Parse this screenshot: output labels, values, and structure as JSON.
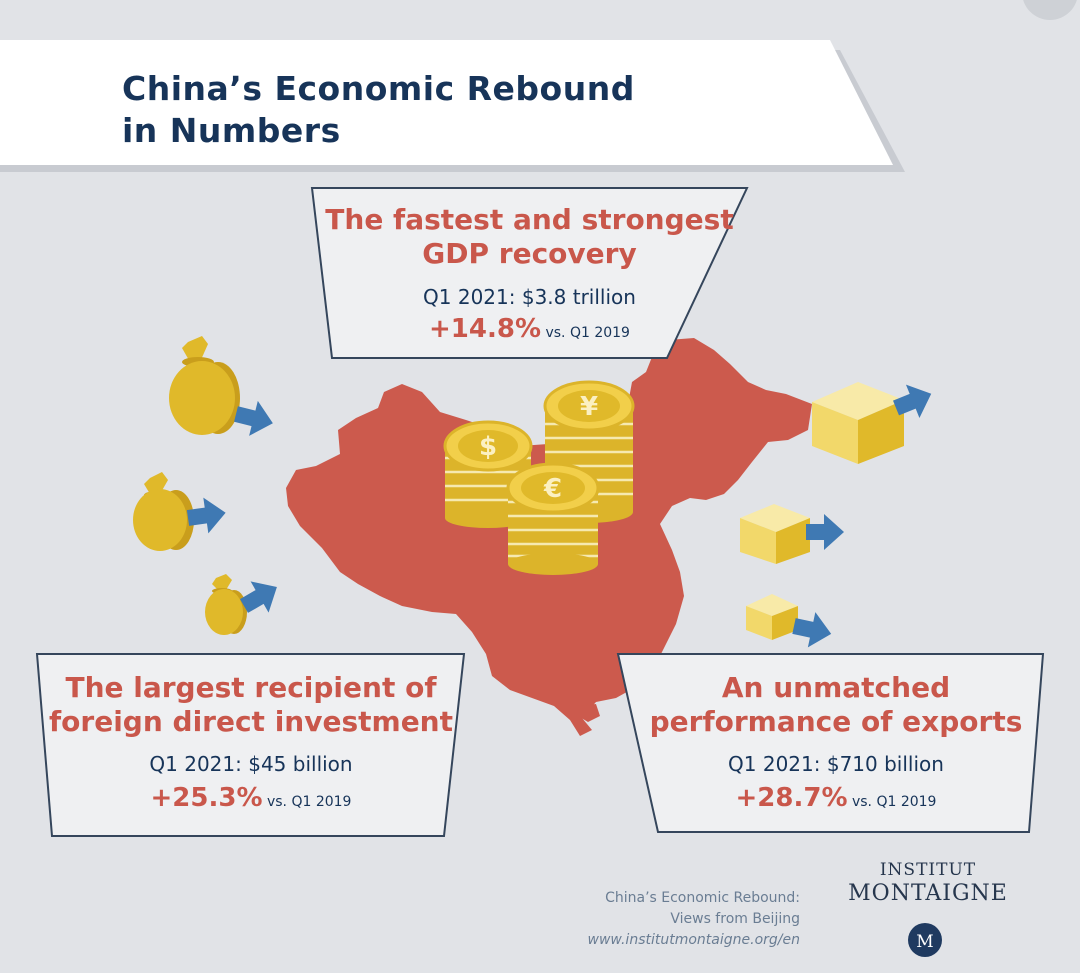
{
  "title": {
    "line1": "China’s Economic Rebound",
    "line2": "in Numbers"
  },
  "gdp": {
    "heading_line1": "The fastest and strongest",
    "heading_line2": "GDP recovery",
    "value": "Q1 2021: $3.8 trillion",
    "change": "+14.8%",
    "comparison": "vs. Q1 2019"
  },
  "fdi": {
    "heading_line1": "The largest recipient of",
    "heading_line2": "foreign direct investment",
    "value": "Q1 2021: $45 billion",
    "change": "+25.3%",
    "comparison": "vs. Q1 2019"
  },
  "exports": {
    "heading_line1": "An unmatched",
    "heading_line2": "performance of exports",
    "value": "Q1 2021: $710 billion",
    "change": "+28.7%",
    "comparison": "vs. Q1 2019"
  },
  "source": {
    "line1": "China’s Economic Rebound:",
    "line2": "Views from Beijing",
    "url": "www.institutmontaigne.org/en"
  },
  "brand": {
    "line1": "INSTITUT",
    "line2": "MONTAIGNE"
  },
  "coins": {
    "symbols": [
      "$",
      "¥",
      "€"
    ]
  },
  "colors": {
    "background": "#e1e3e7",
    "navy": "#173459",
    "red": "#c9574b",
    "map": "#cc5a4d",
    "gold": "#e0b92a",
    "arrow": "#3f79b3"
  }
}
